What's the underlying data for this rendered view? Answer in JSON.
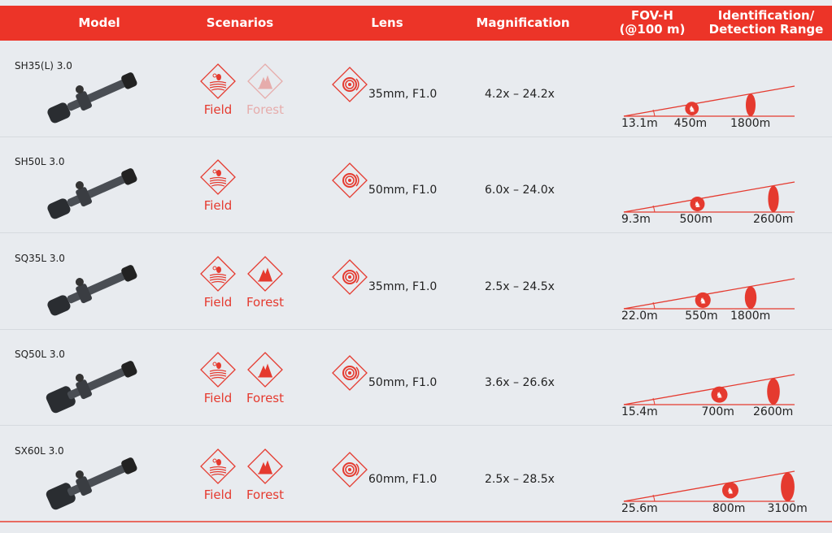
{
  "header": {
    "model": "Model",
    "scenarios": "Scenarios",
    "lens": "Lens",
    "magnification": "Magnification",
    "fov": "FOV-H\n(@100 m)",
    "range": "Identification/\nDetection Range"
  },
  "accent": "#ec3428",
  "rows": [
    {
      "model": "SH35(L) 3.0",
      "field": "Field",
      "forest": "Forest",
      "forest_available": false,
      "lens": "35mm, F1.0",
      "magnification": "4.2x – 24.2x",
      "fov": "13.1m",
      "identification": "450m",
      "detection": "1800m"
    },
    {
      "model": "SH50L 3.0",
      "field": "Field",
      "forest": null,
      "lens": "50mm, F1.0",
      "magnification": "6.0x – 24.0x",
      "fov": "9.3m",
      "identification": "500m",
      "detection": "2600m"
    },
    {
      "model": "SQ35L 3.0",
      "field": "Field",
      "forest": "Forest",
      "forest_available": true,
      "lens": "35mm, F1.0",
      "magnification": "2.5x – 24.5x",
      "fov": "22.0m",
      "identification": "550m",
      "detection": "1800m"
    },
    {
      "model": "SQ50L 3.0",
      "field": "Field",
      "forest": "Forest",
      "forest_available": true,
      "lens": "50mm, F1.0",
      "magnification": "3.6x – 26.6x",
      "fov": "15.4m",
      "identification": "700m",
      "detection": "2600m"
    },
    {
      "model": "SX60L 3.0",
      "field": "Field",
      "forest": "Forest",
      "forest_available": true,
      "lens": "60mm, F1.0",
      "magnification": "2.5x – 28.5x",
      "fov": "25.6m",
      "identification": "800m",
      "detection": "3100m"
    }
  ]
}
